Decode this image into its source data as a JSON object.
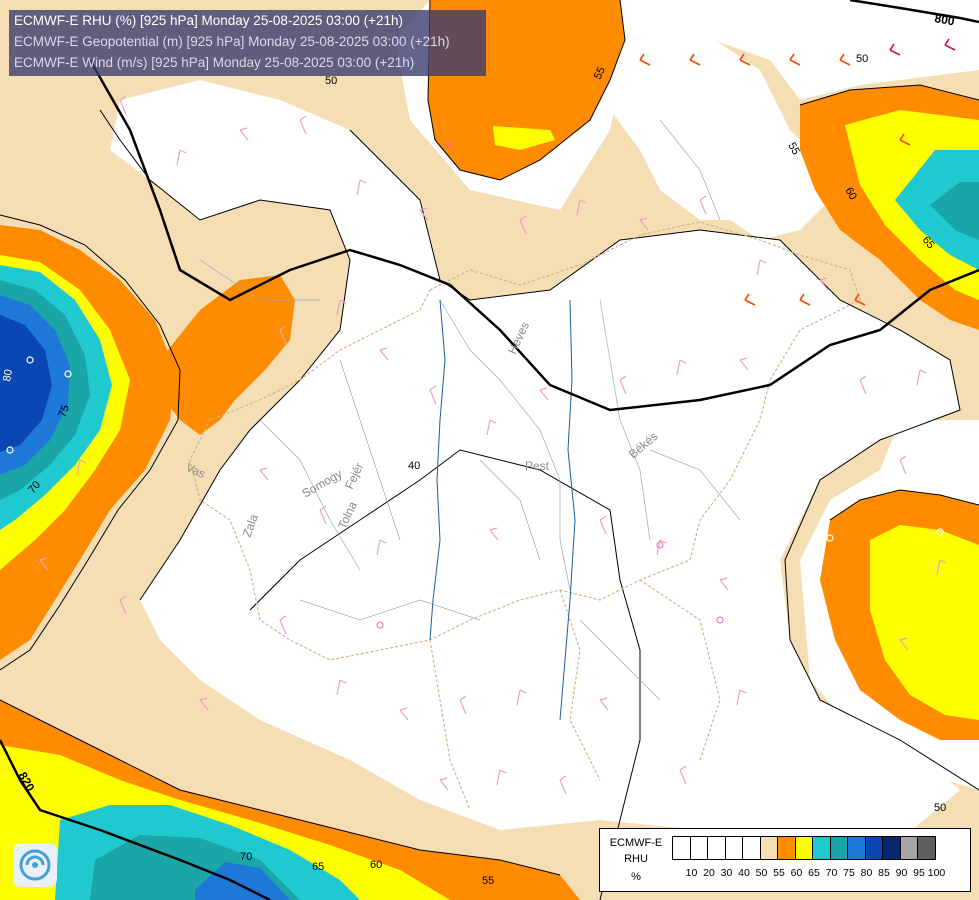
{
  "header": {
    "line1": "ECMWF-E RHU (%) [925 hPa] Monday 25-08-2025 03:00 (+21h)",
    "line2": "ECMWF-E Geopotential (m) [925 hPa] Monday 25-08-2025 03:00 (+21h)",
    "line3": "ECMWF-E Wind (m/s) [925 hPa] Monday 25-08-2025 03:00 (+21h)"
  },
  "map": {
    "region_labels": [
      "Pest",
      "Békés",
      "Heves",
      "Fejér",
      "Somogy",
      "Tolna",
      "Zala",
      "Vas"
    ],
    "geopotential_labels": [
      "800",
      "820"
    ],
    "rhu_contour_labels": [
      "50",
      "55",
      "60",
      "65",
      "70",
      "75",
      "40",
      "80"
    ]
  },
  "legend": {
    "model": "ECMWF-E",
    "variable": "RHU",
    "unit": "%",
    "ticks": [
      "10",
      "20",
      "30",
      "40",
      "50",
      "55",
      "60",
      "65",
      "70",
      "75",
      "80",
      "85",
      "90",
      "95",
      "100"
    ],
    "colors": [
      "#ffffff",
      "#ffffff",
      "#ffffff",
      "#ffffff",
      "#ffffff",
      "#f5deb3",
      "#ff8c00",
      "#ffff00",
      "#20c8d0",
      "#1aa6a6",
      "#1e78d8",
      "#0a46b4",
      "#06286e",
      "#a6a6a6",
      "#606060"
    ]
  },
  "logo": {
    "icon": "weather-swirl-icon"
  }
}
